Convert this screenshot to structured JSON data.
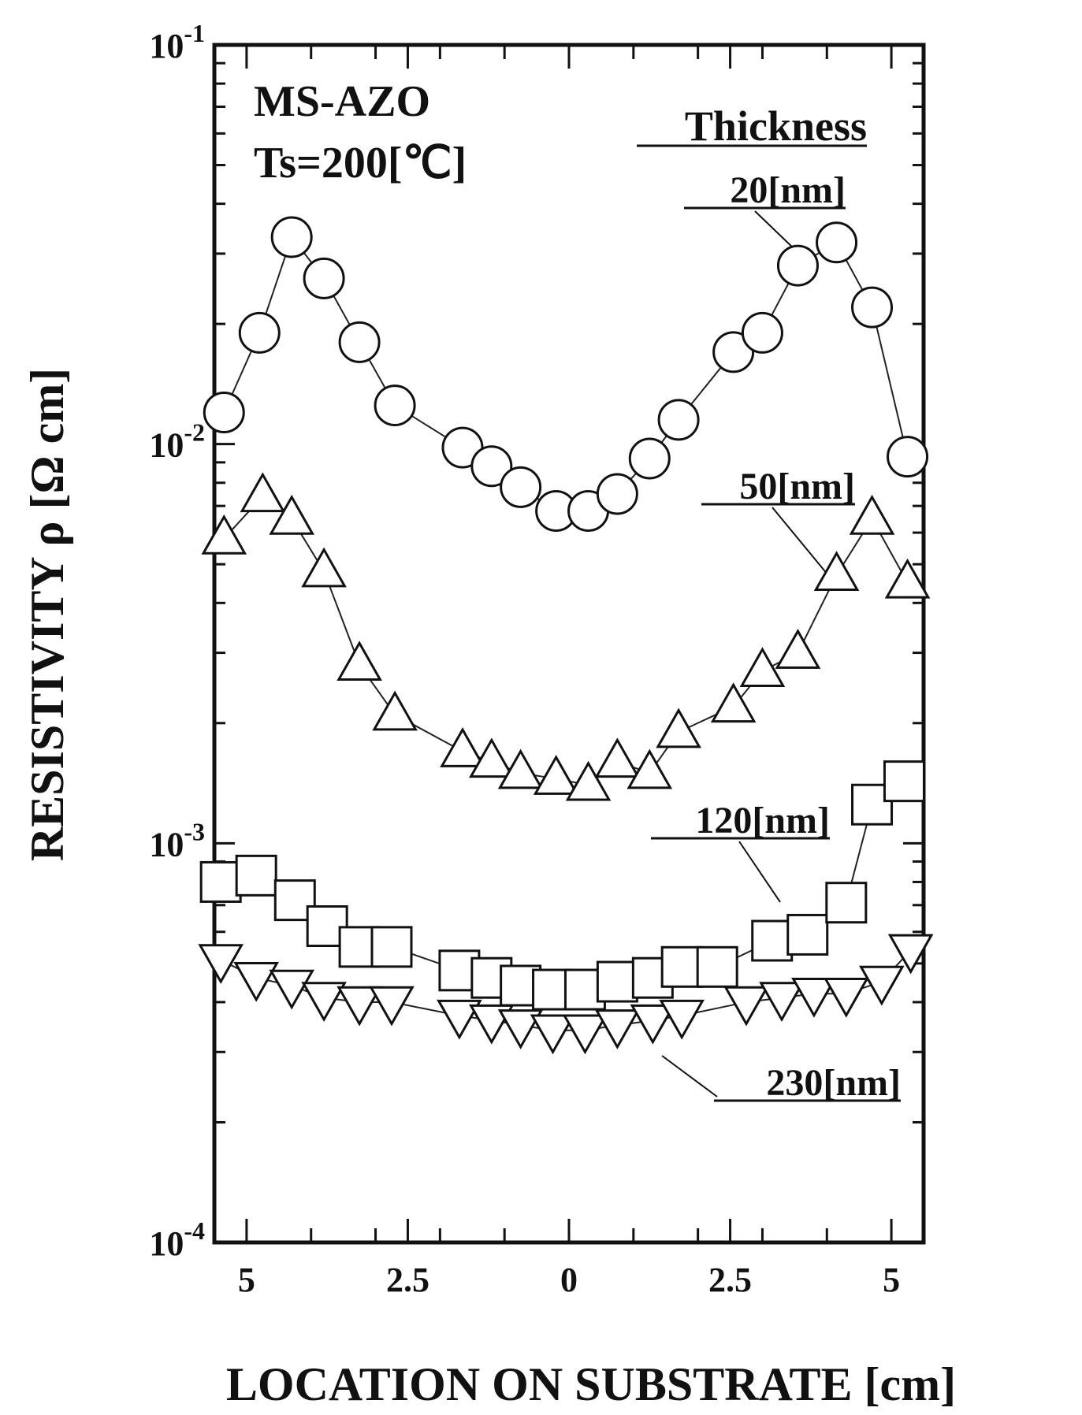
{
  "chart_data": {
    "type": "scatter",
    "title": "",
    "xlabel": "LOCATION ON SUBSTRATE [cm]",
    "ylabel": "RESISTIVITY ρ [Ω cm]",
    "x_range": [
      -5.5,
      5.5
    ],
    "y_scale": "log",
    "y_range": [
      0.0001,
      0.1
    ],
    "x_ticks": [
      {
        "value": -5,
        "label": "5"
      },
      {
        "value": -2.5,
        "label": "2.5"
      },
      {
        "value": 0,
        "label": "0"
      },
      {
        "value": 2.5,
        "label": "2.5"
      },
      {
        "value": 5,
        "label": "5"
      }
    ],
    "y_ticks": [
      {
        "value": 0.1,
        "base": "10",
        "exp": "-1"
      },
      {
        "value": 0.01,
        "base": "10",
        "exp": "-2"
      },
      {
        "value": 0.001,
        "base": "10",
        "exp": "-3"
      },
      {
        "value": 0.0001,
        "base": "10",
        "exp": "-4"
      }
    ],
    "annotations": {
      "material": "MS-AZO",
      "temperature": "Ts=200[℃]",
      "legend_title": "Thickness"
    },
    "series": [
      {
        "name": "20[nm]",
        "marker": "circle",
        "x": [
          -5.35,
          -4.8,
          -4.3,
          -3.8,
          -3.25,
          -2.7,
          -1.65,
          -1.2,
          -0.75,
          -0.2,
          0.3,
          0.75,
          1.25,
          1.7,
          2.55,
          3.0,
          3.55,
          4.15,
          4.7,
          5.25
        ],
        "y": [
          0.012,
          0.019,
          0.033,
          0.026,
          0.018,
          0.0125,
          0.0098,
          0.0088,
          0.0078,
          0.0068,
          0.0068,
          0.0075,
          0.0092,
          0.0115,
          0.017,
          0.019,
          0.028,
          0.032,
          0.022,
          0.0093
        ]
      },
      {
        "name": "50[nm]",
        "marker": "triangle-up",
        "x": [
          -5.35,
          -4.75,
          -4.3,
          -3.8,
          -3.25,
          -2.7,
          -1.65,
          -1.2,
          -0.75,
          -0.2,
          0.3,
          0.75,
          1.25,
          1.7,
          2.55,
          3.0,
          3.55,
          4.15,
          4.7,
          5.25
        ],
        "y": [
          0.0058,
          0.0074,
          0.0065,
          0.0048,
          0.0028,
          0.0021,
          0.0017,
          0.0016,
          0.0015,
          0.00145,
          0.0014,
          0.0016,
          0.0015,
          0.0019,
          0.0022,
          0.0027,
          0.003,
          0.0047,
          0.0065,
          0.0045
        ]
      },
      {
        "name": "120[nm]",
        "marker": "square",
        "x": [
          -5.4,
          -4.85,
          -4.25,
          -3.75,
          -3.25,
          -2.75,
          -1.7,
          -1.2,
          -0.75,
          -0.25,
          0.25,
          0.75,
          1.3,
          1.75,
          2.3,
          3.15,
          3.7,
          4.3,
          4.7,
          5.2
        ],
        "y": [
          0.0008,
          0.00083,
          0.00072,
          0.00062,
          0.00055,
          0.00055,
          0.00048,
          0.00046,
          0.00044,
          0.00043,
          0.00043,
          0.00045,
          0.00046,
          0.00049,
          0.00049,
          0.00057,
          0.00059,
          0.00071,
          0.00125,
          0.00143
        ]
      },
      {
        "name": "230[nm]",
        "marker": "triangle-down",
        "x": [
          -5.4,
          -4.85,
          -4.3,
          -3.8,
          -3.25,
          -2.75,
          -1.7,
          -1.2,
          -0.75,
          -0.25,
          0.25,
          0.75,
          1.3,
          1.75,
          2.75,
          3.3,
          3.8,
          4.3,
          4.85,
          5.3
        ],
        "y": [
          0.00051,
          0.00046,
          0.00044,
          0.00041,
          0.0004,
          0.0004,
          0.00037,
          0.00036,
          0.00035,
          0.00034,
          0.00034,
          0.00035,
          0.00036,
          0.00037,
          0.0004,
          0.00041,
          0.00042,
          0.00042,
          0.00045,
          0.00054
        ]
      }
    ]
  }
}
